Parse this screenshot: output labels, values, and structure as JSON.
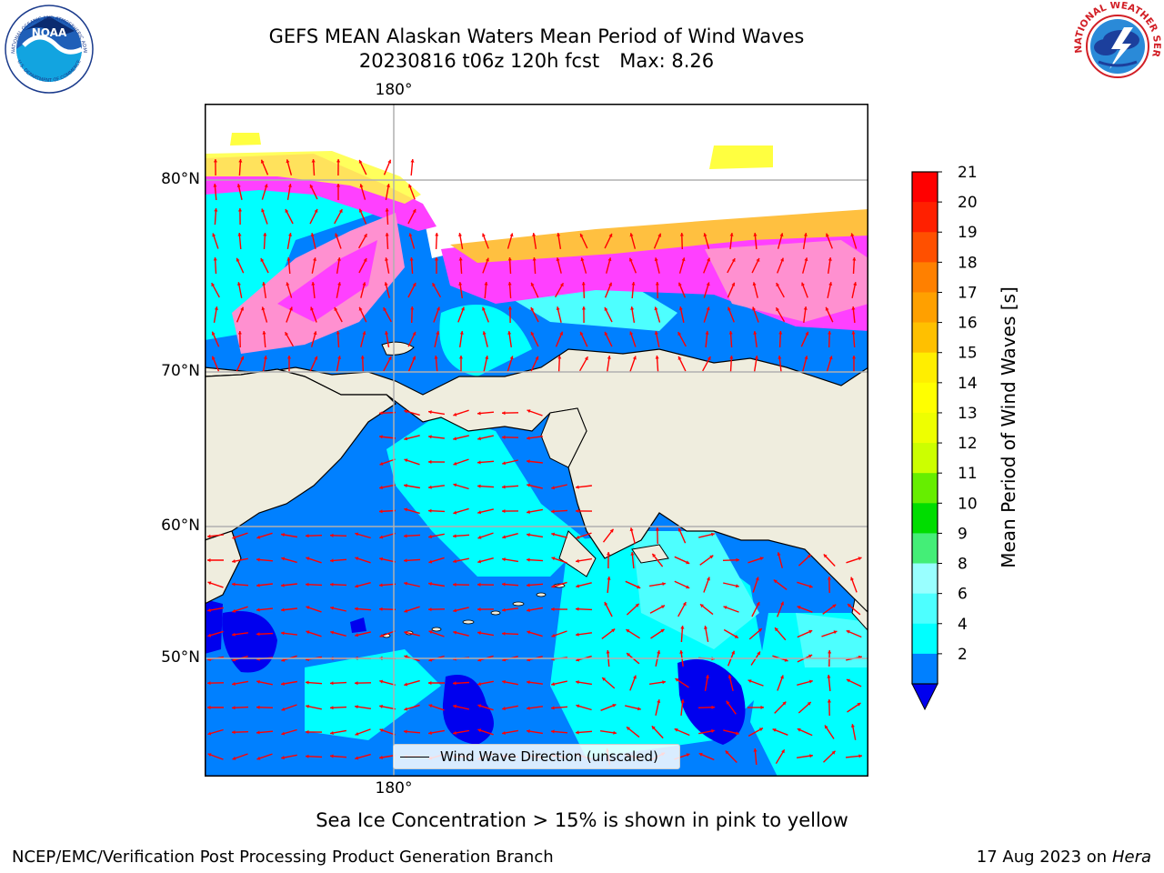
{
  "header": {
    "title_line1": "GEFS MEAN Alaskan Waters Mean Period of Wind Waves",
    "title_run": "20230816 t06z 120h fcst",
    "title_max": "Max: 8.26"
  },
  "logos": {
    "noaa_text": "NOAA",
    "noaa_ring_text": "NATIONAL OCEANIC AND ATMOSPHERIC ADMINISTRATION",
    "noaa_ring_text_bottom": "U.S. DEPARTMENT OF COMMERCE",
    "nws_ring_text": "NATIONAL WEATHER SERVICE"
  },
  "map": {
    "lon_label_top": "180°",
    "lon_label_bottom": "180°",
    "lat_labels": [
      "80°N",
      "70°N",
      "60°N",
      "50°N"
    ],
    "colors": {
      "land": "#efedde",
      "ocean_low": "#0000ee",
      "ocean_2_4": "#0080ff",
      "ocean_4_6": "#00ffff",
      "ocean_6_8": "#4dffff",
      "ice_pink": "#ff40ff",
      "ice_mid": "#ff90d0",
      "ice_yellow": "#ffff40",
      "arrow": "#ff0000",
      "grid": "#b0b0b0"
    },
    "legend_label": "Wind Wave Direction (unscaled)"
  },
  "colorbar": {
    "title": "Mean Period of Wind Waves [s]",
    "ticks": [
      "21",
      "20",
      "19",
      "18",
      "17",
      "16",
      "15",
      "14",
      "13",
      "12",
      "11",
      "10",
      "9",
      "8",
      "6",
      "4",
      "2"
    ],
    "bands": [
      "#ff0000",
      "#ff2000",
      "#ff5000",
      "#ff8000",
      "#ffa000",
      "#ffc000",
      "#ffee00",
      "#ffff00",
      "#eeff00",
      "#ccff00",
      "#66ee00",
      "#00dd00",
      "#44ee77",
      "#99ffff",
      "#4dffff",
      "#00ffff",
      "#0080ff"
    ],
    "under_color": "#0000ee"
  },
  "notes": {
    "ice": "Sea Ice Concentration > 15% is shown in pink to yellow"
  },
  "footer": {
    "left": "NCEP/EMC/Verification Post Processing Product Generation Branch",
    "right_date": "17 Aug 2023 on",
    "right_host": "Hera"
  }
}
